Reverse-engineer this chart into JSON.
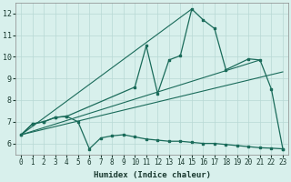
{
  "xlabel": "Humidex (Indice chaleur)",
  "xlim": [
    -0.5,
    23.5
  ],
  "ylim": [
    5.5,
    12.5
  ],
  "xticks": [
    0,
    1,
    2,
    3,
    4,
    5,
    6,
    7,
    8,
    9,
    10,
    11,
    12,
    13,
    14,
    15,
    16,
    17,
    18,
    19,
    20,
    21,
    22,
    23
  ],
  "yticks": [
    6,
    7,
    8,
    9,
    10,
    11,
    12
  ],
  "bg_color": "#d8f0ec",
  "grid_color": "#b8d8d4",
  "line_color": "#1a6b5a",
  "curve_main_x": [
    0,
    1,
    2,
    3,
    4,
    10,
    11,
    12,
    13,
    14,
    15,
    16,
    17,
    18,
    20,
    21,
    22,
    23
  ],
  "curve_main_y": [
    6.4,
    6.9,
    7.0,
    7.2,
    7.25,
    8.6,
    10.5,
    8.3,
    9.85,
    10.05,
    12.2,
    11.7,
    11.3,
    9.4,
    9.9,
    9.85,
    8.5,
    5.75
  ],
  "curve_low_x": [
    0,
    1,
    2,
    3,
    4,
    5,
    6,
    7,
    8,
    9,
    10,
    11,
    12,
    13,
    14,
    15,
    16,
    17,
    18,
    19,
    20,
    21,
    22,
    23
  ],
  "curve_low_y": [
    6.4,
    6.9,
    7.0,
    7.2,
    7.25,
    7.0,
    5.75,
    6.25,
    6.35,
    6.4,
    6.3,
    6.2,
    6.15,
    6.1,
    6.1,
    6.05,
    6.0,
    6.0,
    5.95,
    5.9,
    5.85,
    5.8,
    5.78,
    5.75
  ],
  "line1_x": [
    0,
    15
  ],
  "line1_y": [
    6.4,
    12.2
  ],
  "line2_x": [
    0,
    21
  ],
  "line2_y": [
    6.4,
    9.85
  ],
  "line3_x": [
    0,
    23
  ],
  "line3_y": [
    6.4,
    9.3
  ]
}
